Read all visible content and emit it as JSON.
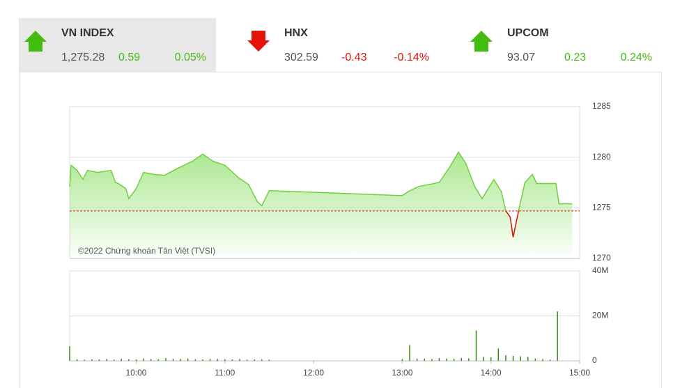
{
  "indices": [
    {
      "name": "VN INDEX",
      "value": "1,275.28",
      "change": "0.59",
      "change_pct": "0.05%",
      "direction": "up"
    },
    {
      "name": "HNX",
      "value": "302.59",
      "change": "-0.43",
      "change_pct": "-0.14%",
      "direction": "down"
    },
    {
      "name": "UPCOM",
      "value": "93.07",
      "change": "0.23",
      "change_pct": "0.24%",
      "direction": "up"
    }
  ],
  "up_color": "#44bb11",
  "down_color": "#e3120b",
  "chart_data": [
    {
      "type": "line",
      "annotation": "©2022 Chứng khoán Tân Việt (TVSI)",
      "x": [
        555,
        556,
        560,
        564,
        567,
        574,
        583,
        586,
        588,
        593,
        595,
        600,
        605,
        612,
        619,
        628,
        638,
        645,
        652,
        660,
        669,
        676,
        682,
        685,
        690,
        780,
        784,
        791,
        805,
        812,
        818,
        823,
        829,
        834,
        839,
        842,
        847,
        850,
        853,
        855,
        857,
        860,
        863,
        868,
        871,
        884,
        886,
        895
      ],
      "values": [
        1277.1,
        1279.2,
        1278.7,
        1277.8,
        1278.7,
        1278.5,
        1278.7,
        1277.5,
        1277.4,
        1276.9,
        1275.9,
        1276.9,
        1278.5,
        1278.3,
        1278.2,
        1278.9,
        1279.6,
        1280.3,
        1279.6,
        1279.2,
        1278.0,
        1277.3,
        1275.6,
        1275.2,
        1276.7,
        1276.2,
        1276.6,
        1277.1,
        1277.5,
        1279.0,
        1280.5,
        1279.4,
        1277.1,
        1275.9,
        1277.1,
        1277.8,
        1276.6,
        1274.7,
        1274.1,
        1272.1,
        1273.5,
        1275.6,
        1277.5,
        1278.3,
        1277.4,
        1277.4,
        1275.4,
        1275.4
      ],
      "color": "#6fcf3f",
      "below_color": "#e3120b",
      "reference": 1274.69,
      "reference_color": "#cc2200",
      "xlim": [
        555,
        900
      ],
      "ylim": [
        1270,
        1285
      ],
      "yticks": [
        1270,
        1275,
        1280,
        1285
      ],
      "grid": true
    },
    {
      "type": "bar",
      "x": [
        555,
        560,
        565,
        570,
        575,
        580,
        585,
        590,
        595,
        600,
        605,
        610,
        615,
        620,
        625,
        630,
        635,
        640,
        645,
        650,
        655,
        660,
        665,
        670,
        675,
        680,
        685,
        690,
        780,
        785,
        790,
        795,
        800,
        805,
        810,
        815,
        820,
        825,
        830,
        835,
        840,
        845,
        850,
        855,
        860,
        865,
        870,
        875,
        880,
        885
      ],
      "values": [
        6500000,
        600000,
        500000,
        700000,
        600000,
        800000,
        500000,
        900000,
        700000,
        600000,
        1000000,
        800000,
        700000,
        1200000,
        900000,
        800000,
        1000000,
        700000,
        600000,
        900000,
        800000,
        700000,
        600000,
        800000,
        500000,
        600000,
        700000,
        500000,
        800000,
        7000000,
        1000000,
        900000,
        800000,
        1200000,
        1000000,
        900000,
        1300000,
        1100000,
        13500000,
        1800000,
        1600000,
        5500000,
        2500000,
        2200000,
        2000000,
        1800000,
        1000000,
        800000,
        500000,
        22000000
      ],
      "color": "#2f8f12",
      "xlim": [
        555,
        900
      ],
      "ylim": [
        0,
        40000000
      ],
      "yticks": [
        0,
        {
          "value": 20000000,
          "label": "20M"
        },
        {
          "value": 40000000,
          "label": "40M"
        }
      ],
      "xticks": [
        {
          "value": 600,
          "label": "10:00"
        },
        {
          "value": 660,
          "label": "11:00"
        },
        {
          "value": 720,
          "label": "12:00"
        },
        {
          "value": 780,
          "label": "13:00"
        },
        {
          "value": 840,
          "label": "14:00"
        },
        {
          "value": 900,
          "label": "15:00"
        }
      ],
      "grid": true
    }
  ]
}
